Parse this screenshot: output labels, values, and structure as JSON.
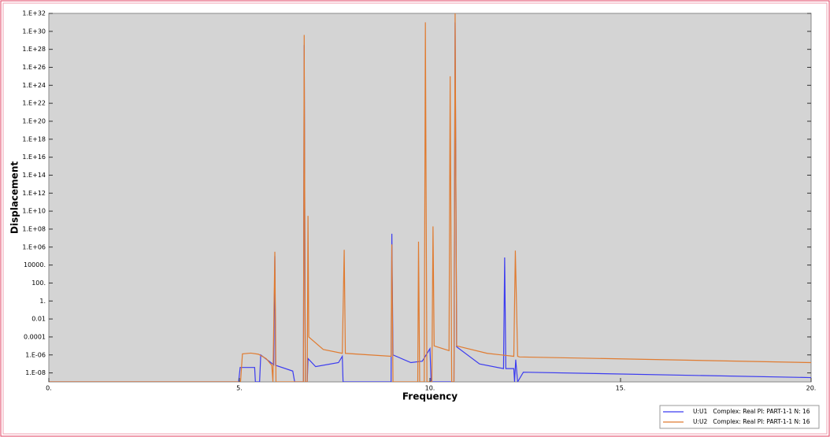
{
  "chart_data": {
    "type": "line",
    "xlabel": "Frequency",
    "ylabel": "Displacement",
    "log_y": true,
    "xlim": [
      0,
      20
    ],
    "ylim": [
      1e-09,
      1e+32
    ],
    "xticks": [
      {
        "value": 0,
        "label": "0."
      },
      {
        "value": 5,
        "label": "5."
      },
      {
        "value": 10,
        "label": "10."
      },
      {
        "value": 15,
        "label": "15."
      },
      {
        "value": 20,
        "label": "20."
      }
    ],
    "yticks": [
      {
        "value": 1e-08,
        "label": "1.E-08"
      },
      {
        "value": 1e-06,
        "label": "1.E-06"
      },
      {
        "value": 0.0001,
        "label": "0.0001"
      },
      {
        "value": 0.01,
        "label": "0.01"
      },
      {
        "value": 1,
        "label": "1."
      },
      {
        "value": 100,
        "label": "100."
      },
      {
        "value": 10000,
        "label": "10000."
      },
      {
        "value": 1000000.0,
        "label": "1.E+06"
      },
      {
        "value": 100000000.0,
        "label": "1.E+08"
      },
      {
        "value": 10000000000.0,
        "label": "1.E+10"
      },
      {
        "value": 1000000000000.0,
        "label": "1.E+12"
      },
      {
        "value": 100000000000000.0,
        "label": "1.E+14"
      },
      {
        "value": 1e+16,
        "label": "1.E+16"
      },
      {
        "value": 1e+18,
        "label": "1.E+18"
      },
      {
        "value": 1e+20,
        "label": "1.E+20"
      },
      {
        "value": 1e+22,
        "label": "1.E+22"
      },
      {
        "value": 1e+24,
        "label": "1.E+24"
      },
      {
        "value": 1e+26,
        "label": "1.E+26"
      },
      {
        "value": 1e+28,
        "label": "1.E+28"
      },
      {
        "value": 1e+30,
        "label": "1.E+30"
      },
      {
        "value": 1e+32,
        "label": "1.E+32"
      }
    ],
    "legend": "lower right",
    "series": [
      {
        "name": "U:U1   Complex: Real PI: PART-1-1 N: 16",
        "color": "#3b3bf0",
        "x": [
          0,
          4.98,
          5.02,
          5.4,
          5.42,
          5.53,
          5.56,
          5.9,
          5.93,
          5.95,
          6.4,
          6.45,
          6.68,
          6.7,
          6.73,
          6.78,
          6.8,
          7.0,
          7.6,
          7.7,
          7.72,
          8.98,
          9.0,
          9.03,
          9.5,
          9.8,
          10.0,
          10.03,
          10.63,
          10.66,
          10.7,
          11.3,
          11.93,
          11.96,
          11.99,
          12.2,
          12.22,
          12.25,
          12.3,
          12.45,
          20
        ],
        "values": [
          1e-09,
          1e-09,
          4e-08,
          4e-08,
          1e-09,
          1e-09,
          1e-06,
          8e-08,
          100000.0,
          7e-08,
          1.6e-08,
          1e-09,
          1e-09,
          3e+28,
          1e-09,
          1e-09,
          4e-07,
          5e-08,
          1.4e-07,
          7e-07,
          1e-09,
          1e-09,
          30000000.0,
          1e-06,
          1.4e-07,
          2e-07,
          5e-06,
          1e-09,
          1e-09,
          1e+31,
          8e-06,
          1e-07,
          3e-08,
          70000.0,
          3e-08,
          3e-08,
          1e-09,
          3e-07,
          1e-09,
          1.2e-08,
          3e-09
        ]
      },
      {
        "name": "U:U2   Complex: Real PI: PART-1-1 N: 16",
        "color": "#e07b30",
        "x": [
          0,
          5.03,
          5.08,
          5.3,
          5.5,
          5.7,
          5.85,
          5.88,
          5.93,
          5.96,
          6.68,
          6.7,
          6.73,
          6.78,
          6.8,
          6.82,
          7.2,
          7.7,
          7.75,
          7.78,
          8.98,
          9.0,
          9.03,
          9.68,
          9.7,
          9.73,
          9.85,
          9.88,
          9.92,
          10.05,
          10.08,
          10.11,
          10.5,
          10.53,
          10.57,
          10.63,
          10.66,
          10.7,
          11.5,
          12.2,
          12.24,
          12.3,
          12.35,
          20
        ],
        "values": [
          1e-09,
          1e-09,
          1.3e-06,
          1.6e-06,
          1.2e-06,
          4e-07,
          7e-08,
          1e-09,
          300000.0,
          1e-09,
          1e-09,
          4e+29,
          1e-09,
          1e-09,
          3000000000.0,
          0.0001,
          4e-06,
          1.5e-06,
          500000.0,
          1.5e-06,
          7e-07,
          2000000.0,
          1e-09,
          1e-09,
          4000000.0,
          1e-09,
          1e-09,
          1e+31,
          1e-09,
          1e-09,
          200000000.0,
          1e-05,
          3e-06,
          1e+25,
          1e-09,
          1e-09,
          1e+32,
          1e-05,
          1.5e-06,
          7e-07,
          400000.0,
          7e-07,
          6e-07,
          1.4e-07
        ]
      }
    ]
  }
}
